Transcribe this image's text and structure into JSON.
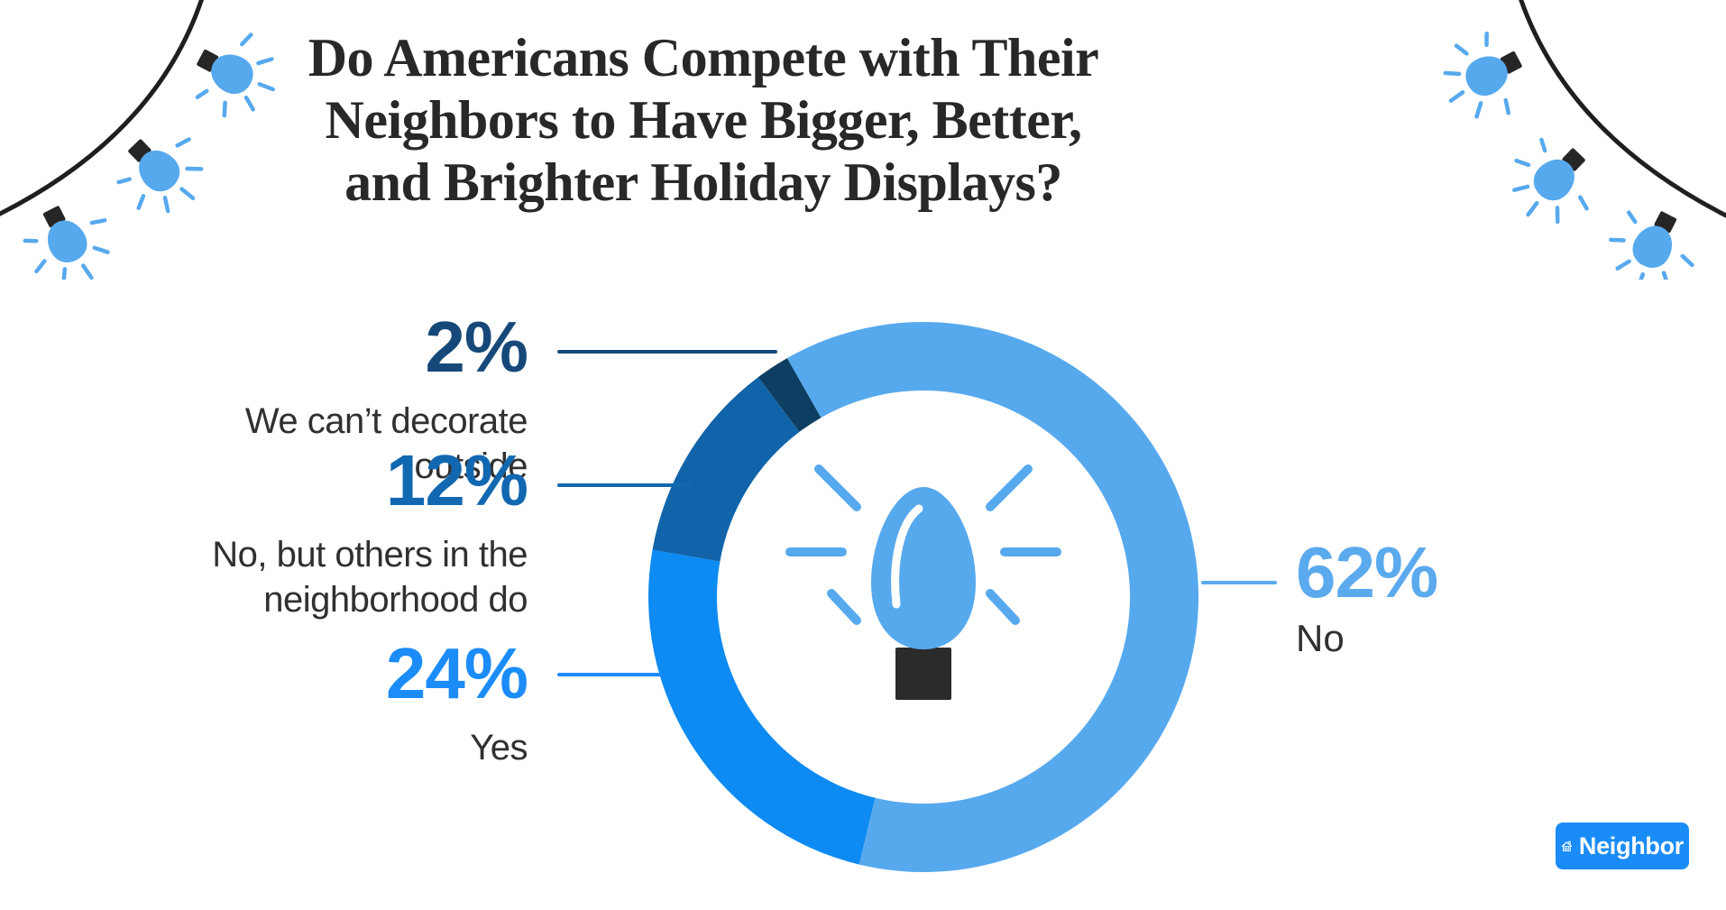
{
  "title": {
    "lines": [
      "Do Americans Compete with Their",
      "Neighbors to Have Bigger, Better,",
      "and Brighter Holiday Displays?"
    ]
  },
  "chart_data": {
    "type": "pie",
    "donut": true,
    "title": "Do Americans Compete with Their Neighbors to Have Bigger, Better, and Brighter Holiday Displays?",
    "units": "percent",
    "segments": [
      {
        "key": "yes",
        "label": "Yes",
        "value": 24,
        "color": "#0d8bf2"
      },
      {
        "key": "no-but-others",
        "label": "No, but others in the neighborhood do",
        "value": 12,
        "color": "#1164a9"
      },
      {
        "key": "cant-decorate",
        "label": "We can’t decorate outside",
        "value": 2,
        "color": "#0e3f62"
      },
      {
        "key": "no",
        "label": "No",
        "value": 62,
        "color": "#57a9ee"
      }
    ],
    "layout": {
      "start_angle_deg": 193.5,
      "clockwise": true,
      "center_local": [
        364,
        364
      ],
      "outer_radius": 305,
      "inner_radius": 229,
      "legend_position": "callouts",
      "center_icon": "glowing-christmas-bulb"
    }
  },
  "callouts": {
    "left": [
      {
        "percent": "2%",
        "lines": [
          "We can’t decorate outside"
        ],
        "number_color": "#16497a",
        "line_color": "#144a77"
      },
      {
        "percent": "12%",
        "lines": [
          "No, but others in the",
          "neighborhood do"
        ],
        "number_color": "#1268b0",
        "line_color": "#1268b0"
      },
      {
        "percent": "24%",
        "lines": [
          "Yes"
        ],
        "number_color": "#1b8cf8",
        "line_color": "#1b8cf8"
      }
    ],
    "right": {
      "percent": "62%",
      "lines": [
        "No"
      ],
      "number_color": "#5caaee",
      "line_color": "#5caaee"
    }
  },
  "logo": {
    "label": "Neighbor",
    "background": "#1a8cf8",
    "text_color": "#ffffff"
  },
  "colors": {
    "background": "#ffffff",
    "title_text": "#282828",
    "label_text": "#303030",
    "bulb_blue": "#57a9ee",
    "bulb_base": "#2b2b2b",
    "wire": "#1f1f1f"
  }
}
